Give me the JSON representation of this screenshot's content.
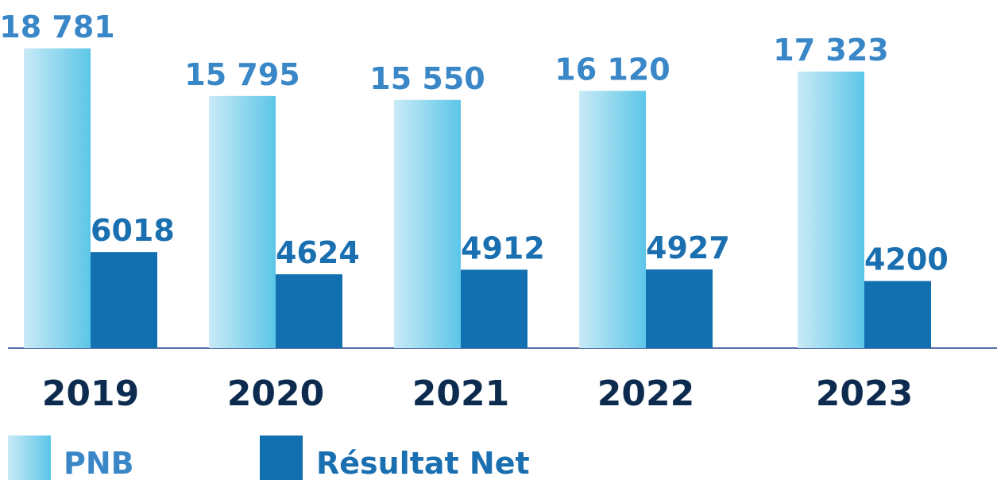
{
  "chart_data": {
    "type": "bar",
    "categories": [
      "2019",
      "2020",
      "2021",
      "2022",
      "2023"
    ],
    "series": [
      {
        "name": "PNB",
        "color": "#5cc6e8",
        "values": [
          18781,
          15795,
          15550,
          16120,
          17323
        ],
        "value_labels": [
          "18 781",
          "15 795",
          "15 550",
          "16 120",
          "17 323"
        ]
      },
      {
        "name": "Résultat Net",
        "color": "#1270b0",
        "values": [
          6018,
          4624,
          4912,
          4927,
          4200
        ]
      }
    ]
  }
}
